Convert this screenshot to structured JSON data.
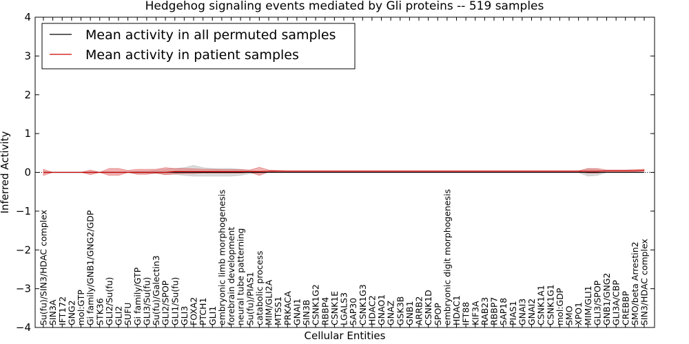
{
  "chart_data": {
    "type": "line",
    "title": "Hedgehog signaling events mediated by Gli proteins -- 519 samples",
    "xlabel": "Cellular Entities",
    "ylabel": "Inferred Activity",
    "ylim": [
      -4,
      4
    ],
    "yticks": [
      -4,
      -3,
      -2,
      -1,
      0,
      1,
      2,
      3,
      4
    ],
    "ytick_labels": [
      "−4",
      "−3",
      "−2",
      "−1",
      "0",
      "1",
      "2",
      "3",
      "4"
    ],
    "legend_position": "top-left",
    "colors": {
      "permuted": "#000000",
      "patient": "#cc0000",
      "patient_band": "#e88080",
      "permuted_band": "#bbbbbb"
    },
    "categories": [
      "Su(fu)/SIN3/HDAC complex",
      "SIN3A",
      "IFT172",
      "GNG2",
      "mol:GTP",
      "Gi family/GNB1/GNG2/GDP",
      "STK36",
      "GLI2/Su(fu)",
      "GLI2",
      "SUFU",
      "Gi family/GTP",
      "GLI3/Su(fu)",
      "Su(fu)/Galectin3",
      "GLI2/SPOP",
      "GLI1/Su(fu)",
      "GLI3",
      "FOXA2",
      "PTCH1",
      "GLI1",
      "embryonic limb morphogenesis",
      "forebrain development",
      "neural tube patterning",
      "Su(fu)/PIAS1",
      "catabolic process",
      "MIM/GLI2A",
      "MTSS1",
      "PRKACA",
      "GNAI1",
      "SIN3B",
      "CSNK1G2",
      "RBBP4",
      "CSNK1E",
      "LGALS3",
      "SAP30",
      "CSNK1G3",
      "HDAC2",
      "GNAO1",
      "GNAZ",
      "GSK3B",
      "GNB1",
      "ARRB2",
      "CSNK1D",
      "SPOP",
      "embryonic digit morphogenesis",
      "HDAC1",
      "IFT88",
      "KIF3A",
      "RAB23",
      "RBBP7",
      "SAP18",
      "PIAS1",
      "GNAI3",
      "GNAI2",
      "CSNK1A1",
      "CSNK1G1",
      "mol:GDP",
      "SMO",
      "XPO1",
      "MIM/GLI1",
      "GLI3/SPOP",
      "GNB1/GNG2",
      "GLI3A/CBP",
      "CREBBP",
      "SMO/beta Arrestin2",
      "SIN3/HDAC complex"
    ],
    "series": [
      {
        "name": "Mean activity in all permuted samples",
        "values": [
          0,
          0,
          0,
          0,
          0,
          0,
          0,
          0,
          0,
          0,
          0,
          0,
          0,
          0,
          0,
          0,
          0,
          0,
          0,
          0,
          0,
          0,
          0,
          0,
          0,
          0,
          0,
          0,
          0,
          0,
          0,
          0,
          0,
          0,
          0,
          0,
          0,
          0,
          0,
          0,
          0,
          0,
          0,
          0,
          0,
          0,
          0,
          0,
          0,
          0,
          0,
          0,
          0,
          0,
          0,
          0,
          0,
          0,
          0,
          0,
          0,
          0,
          0,
          0,
          0
        ],
        "lower": [
          0,
          0,
          0,
          0,
          0,
          0,
          0,
          0,
          0,
          0,
          -0.03,
          -0.03,
          -0.03,
          -0.05,
          -0.05,
          -0.08,
          -0.1,
          -0.1,
          -0.1,
          -0.1,
          -0.1,
          -0.08,
          -0.03,
          -0.03,
          0,
          0,
          0,
          0,
          0,
          0,
          0,
          0,
          0,
          0,
          0,
          0,
          0,
          0,
          0,
          0,
          0,
          0,
          0,
          0,
          0,
          0,
          0,
          0,
          0,
          0,
          0,
          0,
          0,
          0,
          0,
          0,
          0,
          0,
          -0.1,
          -0.08,
          0,
          0,
          0,
          0,
          0
        ],
        "upper": [
          0,
          0,
          0,
          0,
          0,
          0,
          0,
          0,
          0,
          0,
          0.03,
          0.03,
          0.06,
          0.08,
          0.1,
          0.12,
          0.18,
          0.12,
          0.1,
          0.1,
          0.1,
          0.08,
          0.05,
          0.03,
          0,
          0,
          0,
          0,
          0,
          0,
          0,
          0,
          0,
          0,
          0,
          0,
          0,
          0,
          0,
          0,
          0,
          0,
          0,
          0,
          0,
          0,
          0,
          0,
          0,
          0,
          0,
          0,
          0,
          0,
          0,
          0,
          0,
          0,
          0.1,
          0.08,
          0,
          0,
          0,
          0,
          0
        ]
      },
      {
        "name": "Mean activity in patient samples",
        "values": [
          0,
          0,
          0,
          0,
          0,
          0,
          0,
          0,
          0,
          0,
          0,
          0,
          0,
          0,
          0.02,
          0.02,
          0.02,
          0.02,
          0.02,
          0.02,
          0.02,
          0.02,
          0.02,
          0.02,
          0.03,
          0.03,
          0.03,
          0.03,
          0.03,
          0.03,
          0.03,
          0.03,
          0.03,
          0.03,
          0.03,
          0.03,
          0.03,
          0.03,
          0.03,
          0.03,
          0.03,
          0.03,
          0.03,
          0.03,
          0.03,
          0.03,
          0.03,
          0.03,
          0.03,
          0.03,
          0.03,
          0.03,
          0.03,
          0.03,
          0.03,
          0.03,
          0.03,
          0.03,
          0.03,
          0.03,
          0.04,
          0.04,
          0.04,
          0.04,
          0.05
        ],
        "lower": [
          -0.08,
          0,
          0,
          0,
          0,
          -0.06,
          0,
          -0.08,
          -0.08,
          0,
          -0.05,
          -0.05,
          -0.02,
          -0.06,
          -0.04,
          -0.03,
          -0.03,
          -0.02,
          -0.02,
          -0.02,
          -0.02,
          -0.02,
          0,
          -0.08,
          0.01,
          0.02,
          0.02,
          0.02,
          0.02,
          0.02,
          0.02,
          0.02,
          0.02,
          0.02,
          0.02,
          0.02,
          0.02,
          0.02,
          0.02,
          0.02,
          0.02,
          0.02,
          0.02,
          0.02,
          0.02,
          0.02,
          0.02,
          0.02,
          0.02,
          0.02,
          0.02,
          0.02,
          0.02,
          0.02,
          0.02,
          0.02,
          0.02,
          0.02,
          -0.02,
          -0.02,
          0.02,
          0.02,
          0.02,
          0.02,
          0.03
        ],
        "upper": [
          0.08,
          0,
          0,
          0,
          0,
          0.06,
          0,
          0.1,
          0.1,
          0.05,
          0.08,
          0.08,
          0.08,
          0.12,
          0.1,
          0.1,
          0.09,
          0.08,
          0.08,
          0.07,
          0.07,
          0.07,
          0.06,
          0.13,
          0.06,
          0.05,
          0.04,
          0.04,
          0.04,
          0.04,
          0.04,
          0.04,
          0.04,
          0.04,
          0.04,
          0.04,
          0.04,
          0.04,
          0.04,
          0.04,
          0.04,
          0.04,
          0.04,
          0.04,
          0.04,
          0.04,
          0.04,
          0.04,
          0.04,
          0.04,
          0.04,
          0.04,
          0.04,
          0.04,
          0.04,
          0.04,
          0.04,
          0.04,
          0.1,
          0.1,
          0.06,
          0.06,
          0.06,
          0.07,
          0.08
        ]
      }
    ]
  }
}
